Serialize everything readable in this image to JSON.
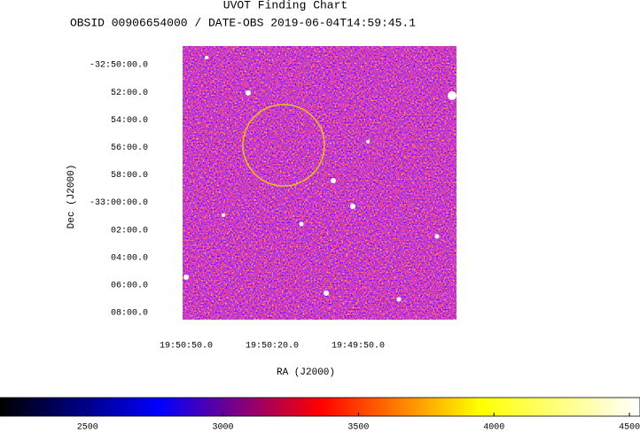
{
  "chart_data": {
    "type": "image",
    "title": "UVOT Finding Chart",
    "subtitle": "OBSID 00906654000 / DATE-OBS 2019-06-04T14:59:45.1",
    "xlabel": "RA (J2000)",
    "ylabel": "Dec (J2000)",
    "xlim": [
      297.7135,
      297.3153
    ],
    "xticks": [
      {
        "value": 297.7083,
        "label": "19:50:50.0"
      },
      {
        "value": 297.5833,
        "label": "19:50:20.0"
      },
      {
        "value": 297.4583,
        "label": "19:49:50.0"
      }
    ],
    "ylim": [
      -33.1419,
      -32.8108
    ],
    "yticks": [
      {
        "value": -32.8333,
        "label": "-32:50:00.0"
      },
      {
        "value": -32.8667,
        "label": "52:00.0"
      },
      {
        "value": -32.9,
        "label": "54:00.0"
      },
      {
        "value": -32.9333,
        "label": "56:00.0"
      },
      {
        "value": -32.9667,
        "label": "58:00.0"
      },
      {
        "value": -33,
        "label": "-33:00:00.0"
      },
      {
        "value": -33.0333,
        "label": "02:00.0"
      },
      {
        "value": -33.0667,
        "label": "04:00.0"
      },
      {
        "value": -33.1,
        "label": "06:00.0"
      },
      {
        "value": -33.1333,
        "label": "08:00.0"
      }
    ],
    "colormap": [
      "#000000",
      "#0000ff",
      "#ff0000",
      "#ffff00",
      "#ffffff"
    ],
    "clim": [
      2177,
      4539
    ],
    "cticks": [
      2500,
      3000,
      3500,
      4000,
      4500
    ]
  }
}
